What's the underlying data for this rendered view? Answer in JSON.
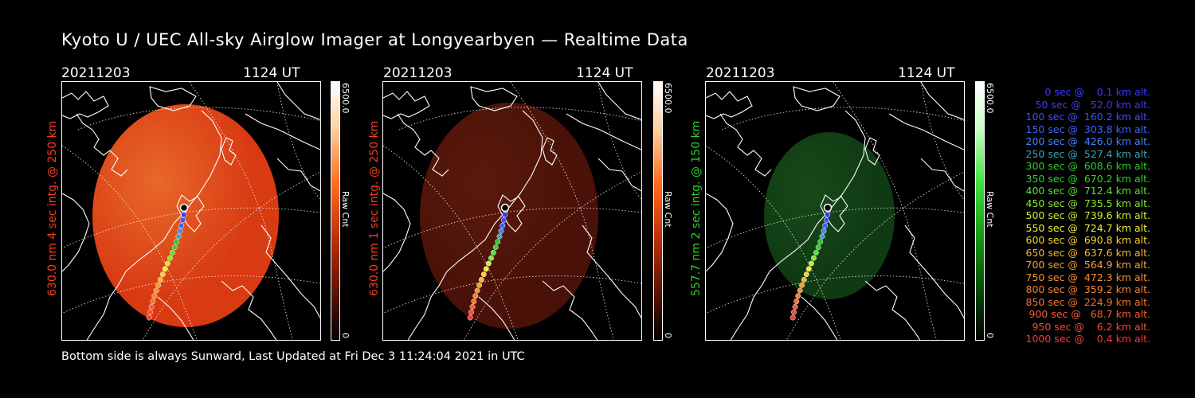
{
  "title": "Kyoto U / UEC All-sky Airglow Imager at Longyearbyen — Realtime Data",
  "footer": "Bottom side is always Sunward, Last Updated at Fri Dec  3 11:24:04 2021 in UTC",
  "panels": [
    {
      "date": "20211203",
      "time": "1124 UT",
      "label": "630.0 nm 4 sec intg. @ 250 km",
      "label_color": "#ff3b1f",
      "cb_max": "6500.0",
      "cb_min": "0",
      "cb_unit": "Raw Cnt",
      "image_color": "#d83a12",
      "brightness": 1.0
    },
    {
      "date": "20211203",
      "time": "1124 UT",
      "label": "630.0 nm 1 sec intg. @ 250 km",
      "label_color": "#ff3b1f",
      "cb_max": "6500.0",
      "cb_min": "0",
      "cb_unit": "Raw Cnt",
      "image_color": "#4a1108",
      "brightness": 0.35
    },
    {
      "date": "20211203",
      "time": "1124 UT",
      "label": "557.7 nm 2 sec intg. @ 150 km",
      "label_color": "#2bd22b",
      "cb_max": "6500.0",
      "cb_min": "0",
      "cb_unit": "Raw Cnt",
      "image_color": "#0f3a12",
      "brightness": 0.3
    }
  ],
  "legend": [
    {
      "text": "0 sec @    0.1 km alt.",
      "color": "#3a3aff"
    },
    {
      "text": "50 sec @   52.0 km alt.",
      "color": "#3a3aff"
    },
    {
      "text": "100 sec @  160.2 km alt.",
      "color": "#3f4dff"
    },
    {
      "text": "150 sec @  303.8 km alt.",
      "color": "#4060ff"
    },
    {
      "text": "200 sec @  426.0 km alt.",
      "color": "#3f85ff"
    },
    {
      "text": "250 sec @  527.4 km alt.",
      "color": "#3aa6b6"
    },
    {
      "text": "300 sec @  608.6 km alt.",
      "color": "#2ec830"
    },
    {
      "text": "350 sec @  670.2 km alt.",
      "color": "#30d230"
    },
    {
      "text": "400 sec @  712.4 km alt.",
      "color": "#56e032"
    },
    {
      "text": "450 sec @  735.5 km alt.",
      "color": "#8be632"
    },
    {
      "text": "500 sec @  739.6 km alt.",
      "color": "#c8ee32"
    },
    {
      "text": "550 sec @  724.7 km alt.",
      "color": "#f0f032"
    },
    {
      "text": "600 sec @  690.8 km alt.",
      "color": "#f7d232"
    },
    {
      "text": "650 sec @  637.6 km alt.",
      "color": "#f7b432"
    },
    {
      "text": "700 sec @  564.9 km alt.",
      "color": "#f7a032"
    },
    {
      "text": "750 sec @  472.3 km alt.",
      "color": "#f79032"
    },
    {
      "text": "800 sec @  359.2 km alt.",
      "color": "#f78032"
    },
    {
      "text": "850 sec @  224.9 km alt.",
      "color": "#f77032"
    },
    {
      "text": "900 sec @   68.7 km alt.",
      "color": "#f75a32"
    },
    {
      "text": "950 sec @    6.2 km alt.",
      "color": "#f74a32"
    },
    {
      "text": "1000 sec @    0.4 km alt.",
      "color": "#f73a32"
    }
  ]
}
